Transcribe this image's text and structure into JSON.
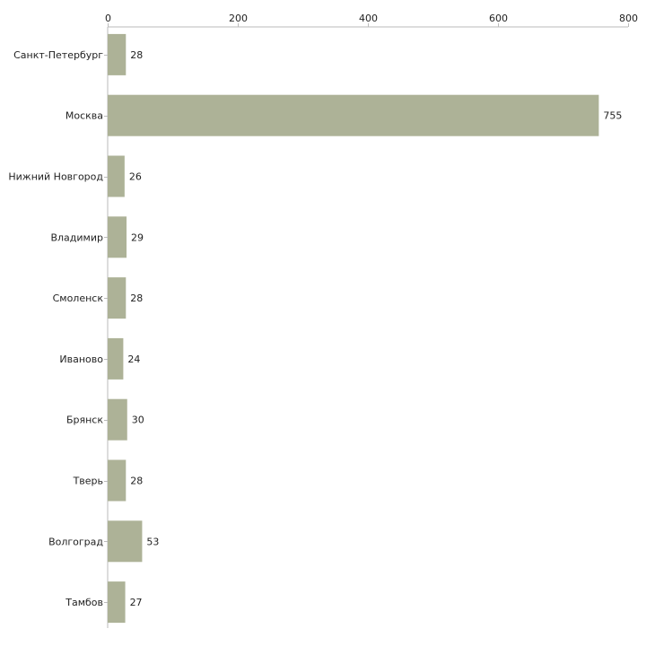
{
  "chart_data": {
    "type": "bar",
    "orientation": "horizontal",
    "title": "",
    "xlabel": "",
    "ylabel": "",
    "xlim": [
      0,
      800
    ],
    "ticks": [
      0,
      200,
      400,
      600,
      800
    ],
    "tick_labels": [
      "0",
      "200",
      "400",
      "600",
      "800"
    ],
    "categories": [
      "Санкт-Петербург",
      "Москва",
      "Нижний Новгород",
      "Владимир",
      "Смоленск",
      "Иваново",
      "Брянск",
      "Тверь",
      "Волгоград",
      "Тамбов"
    ],
    "values": [
      28,
      755,
      26,
      29,
      28,
      24,
      30,
      28,
      53,
      27
    ],
    "value_labels": [
      "28",
      "755",
      "26",
      "29",
      "28",
      "24",
      "30",
      "28",
      "53",
      "27"
    ],
    "bar_color": "#adb297",
    "axis_color": "#bbbbbb",
    "grid": false,
    "legend": "none"
  }
}
